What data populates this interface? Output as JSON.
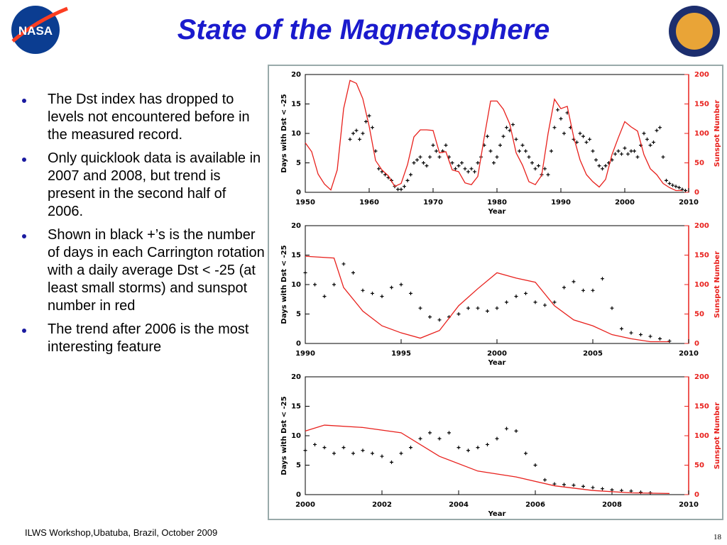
{
  "title": "State of the Magnetosphere",
  "logo_left": "NASA",
  "bullets": [
    "The Dst index has dropped to levels not encountered before in the measured record.",
    "Only quicklook data is available in 2007 and 2008, but trend is present in the second half of 2006.",
    "Shown in black +’s is the number of days in each Carrington rotation with a daily average Dst < -25 (at least small storms) and sunspot number in red",
    "The trend after 2006 is the most interesting feature"
  ],
  "footer": "ILWS Workshop,Ubatuba, Brazil, October 2009",
  "page_number": "18",
  "chart_data": [
    {
      "type": "scatter",
      "xlabel": "Year",
      "ylabel": "Days with Dst < -25",
      "y2label": "Sunspot Number",
      "xlim": [
        1950,
        2010
      ],
      "xticks": [
        1950,
        1960,
        1970,
        1980,
        1990,
        2000,
        2010
      ],
      "ylim": [
        0,
        20
      ],
      "yticks": [
        0,
        5,
        10,
        15,
        20
      ],
      "y2lim": [
        0,
        200
      ],
      "y2ticks": [
        0,
        50,
        100,
        150,
        200
      ],
      "series": [
        {
          "color": "#000000",
          "marker": "+",
          "x": [
            1957,
            1957.5,
            1958,
            1958.5,
            1959,
            1959.5,
            1960,
            1960.5,
            1961,
            1961.5,
            1962,
            1962.5,
            1963,
            1963.5,
            1964,
            1964.5,
            1965,
            1965.5,
            1966,
            1966.5,
            1967,
            1967.5,
            1968,
            1968.5,
            1969,
            1969.5,
            1970,
            1970.5,
            1971,
            1971.5,
            1972,
            1972.5,
            1973,
            1973.5,
            1974,
            1974.5,
            1975,
            1975.5,
            1976,
            1976.5,
            1977,
            1977.5,
            1978,
            1978.5,
            1979,
            1979.5,
            1980,
            1980.5,
            1981,
            1981.5,
            1982,
            1982.5,
            1983,
            1983.5,
            1984,
            1984.5,
            1985,
            1985.5,
            1986,
            1986.5,
            1987,
            1987.5,
            1988,
            1988.5,
            1989,
            1989.5,
            1990,
            1990.5,
            1991,
            1991.5,
            1992,
            1992.5,
            1993,
            1993.5,
            1994,
            1994.5,
            1995,
            1995.5,
            1996,
            1996.5,
            1997,
            1997.5,
            1998,
            1998.5,
            1999,
            1999.5,
            2000,
            2000.5,
            2001,
            2001.5,
            2002,
            2002.5,
            2003,
            2003.5,
            2004,
            2004.5,
            2005,
            2005.5,
            2006,
            2006.5,
            2007,
            2007.5,
            2008,
            2008.5,
            2009,
            2009.5
          ],
          "values": [
            9,
            10,
            10.5,
            9,
            10,
            12,
            13,
            11,
            7,
            4,
            3.5,
            3,
            2.5,
            2,
            1,
            0.5,
            0.5,
            1,
            2,
            3,
            5,
            5.5,
            6,
            5,
            4.5,
            6,
            8,
            7,
            6,
            7,
            8,
            6,
            5,
            4,
            4.5,
            5,
            4,
            3.5,
            4,
            3.5,
            5,
            6,
            8,
            9.5,
            7,
            5,
            6,
            8,
            9.5,
            11,
            10.5,
            11.5,
            9,
            7,
            8,
            7,
            6,
            5,
            4,
            4.5,
            3,
            4,
            3,
            7,
            11,
            14,
            12.5,
            10,
            13.5,
            11,
            9,
            8.5,
            10,
            9.5,
            8.5,
            9,
            7,
            5.5,
            4.5,
            4,
            4.5,
            5,
            5.5,
            6.5,
            7,
            6.5,
            7.5,
            6.5,
            7,
            7,
            6,
            8,
            10,
            9,
            8,
            8.5,
            10.5,
            11,
            6,
            2,
            1.5,
            1.2,
            1,
            0.8,
            0.5,
            0.3
          ]
        },
        {
          "color": "#e8201c",
          "axis": "y2",
          "x": [
            1950,
            1951,
            1952,
            1953,
            1954,
            1955,
            1956,
            1957,
            1958,
            1959,
            1960,
            1961,
            1962,
            1963,
            1964,
            1965,
            1966,
            1967,
            1968,
            1969,
            1970,
            1971,
            1972,
            1973,
            1974,
            1975,
            1976,
            1977,
            1978,
            1979,
            1980,
            1981,
            1982,
            1983,
            1984,
            1985,
            1986,
            1987,
            1988,
            1989,
            1990,
            1991,
            1992,
            1993,
            1994,
            1995,
            1996,
            1997,
            1998,
            1999,
            2000,
            2001,
            2002,
            2003,
            2004,
            2005,
            2006,
            2007,
            2008,
            2009
          ],
          "values": [
            84,
            69,
            31,
            14,
            4,
            38,
            142,
            190,
            185,
            159,
            112,
            54,
            38,
            28,
            10,
            15,
            47,
            94,
            106,
            106,
            105,
            67,
            69,
            38,
            35,
            16,
            13,
            27,
            93,
            155,
            155,
            141,
            116,
            67,
            46,
            18,
            13,
            29,
            100,
            158,
            142,
            146,
            94,
            55,
            30,
            18,
            9,
            22,
            64,
            93,
            120,
            111,
            104,
            64,
            40,
            30,
            15,
            8,
            3,
            3
          ]
        }
      ]
    },
    {
      "type": "scatter",
      "xlabel": "Year",
      "ylabel": "Days with Dst < -25",
      "y2label": "Sunspot Number",
      "xlim": [
        1990,
        2010
      ],
      "xticks": [
        1990,
        1995,
        2000,
        2005,
        2010
      ],
      "ylim": [
        0,
        20
      ],
      "yticks": [
        0,
        5,
        10,
        15,
        20
      ],
      "y2lim": [
        0,
        200
      ],
      "y2ticks": [
        0,
        50,
        100,
        150,
        200
      ],
      "series": [
        {
          "color": "#000000",
          "marker": "+",
          "x": [
            1990,
            1990.5,
            1991,
            1991.5,
            1992,
            1992.5,
            1993,
            1993.5,
            1994,
            1994.5,
            1995,
            1995.5,
            1996,
            1996.5,
            1997,
            1997.5,
            1998,
            1998.5,
            1999,
            1999.5,
            2000,
            2000.5,
            2001,
            2001.5,
            2002,
            2002.5,
            2003,
            2003.5,
            2004,
            2004.5,
            2005,
            2005.5,
            2006,
            2006.5,
            2007,
            2007.5,
            2008,
            2008.5,
            2009
          ],
          "values": [
            12,
            10,
            8,
            10,
            13.5,
            12,
            9,
            8.5,
            8,
            9.5,
            10,
            8.5,
            6,
            4.5,
            4,
            4.5,
            5,
            6,
            6,
            5.5,
            6,
            7,
            8,
            8.5,
            7,
            6.5,
            7,
            9.5,
            10.5,
            9,
            9,
            11,
            6,
            2.5,
            1.8,
            1.5,
            1.2,
            0.8,
            0.4
          ]
        },
        {
          "color": "#e8201c",
          "axis": "y2",
          "x": [
            1990,
            1991.5,
            1992,
            1993,
            1994,
            1995,
            1996,
            1997,
            1998,
            1999,
            2000,
            2001,
            2002,
            2003,
            2004,
            2005,
            2006,
            2007,
            2008,
            2009
          ],
          "values": [
            148,
            145,
            95,
            55,
            30,
            18,
            9,
            22,
            64,
            93,
            120,
            111,
            104,
            64,
            40,
            30,
            15,
            8,
            3,
            3
          ]
        }
      ]
    },
    {
      "type": "scatter",
      "xlabel": "Year",
      "ylabel": "Days with Dst < -25",
      "y2label": "Sunspot Number",
      "xlim": [
        2000,
        2010
      ],
      "xticks": [
        2000,
        2002,
        2004,
        2006,
        2008,
        2010
      ],
      "ylim": [
        0,
        20
      ],
      "yticks": [
        0,
        5,
        10,
        15,
        20
      ],
      "y2lim": [
        0,
        200
      ],
      "y2ticks": [
        0,
        50,
        100,
        150,
        200
      ],
      "series": [
        {
          "color": "#000000",
          "marker": "+",
          "x": [
            2000,
            2000.25,
            2000.5,
            2000.75,
            2001,
            2001.25,
            2001.5,
            2001.75,
            2002,
            2002.25,
            2002.5,
            2002.75,
            2003,
            2003.25,
            2003.5,
            2003.75,
            2004,
            2004.25,
            2004.5,
            2004.75,
            2005,
            2005.25,
            2005.5,
            2005.75,
            2006,
            2006.25,
            2006.5,
            2006.75,
            2007,
            2007.25,
            2007.5,
            2007.75,
            2008,
            2008.25,
            2008.5,
            2008.75,
            2009
          ],
          "values": [
            7.5,
            8.5,
            8,
            7,
            8,
            7,
            7.5,
            7,
            6.5,
            5.5,
            7,
            8,
            9.5,
            10.5,
            9.5,
            10.5,
            8,
            7.5,
            8,
            8.5,
            9.5,
            11.2,
            10.8,
            7,
            5,
            2.5,
            1.8,
            1.7,
            1.6,
            1.4,
            1.2,
            1,
            0.8,
            0.7,
            0.6,
            0.4,
            0.3
          ]
        },
        {
          "color": "#e8201c",
          "axis": "y2",
          "x": [
            2000,
            2000.5,
            2001.5,
            2002.5,
            2003.5,
            2004.5,
            2005.5,
            2006.5,
            2007.5,
            2008.5,
            2009.5
          ],
          "values": [
            108,
            118,
            114,
            105,
            65,
            40,
            30,
            15,
            7,
            3,
            2
          ]
        }
      ]
    }
  ]
}
